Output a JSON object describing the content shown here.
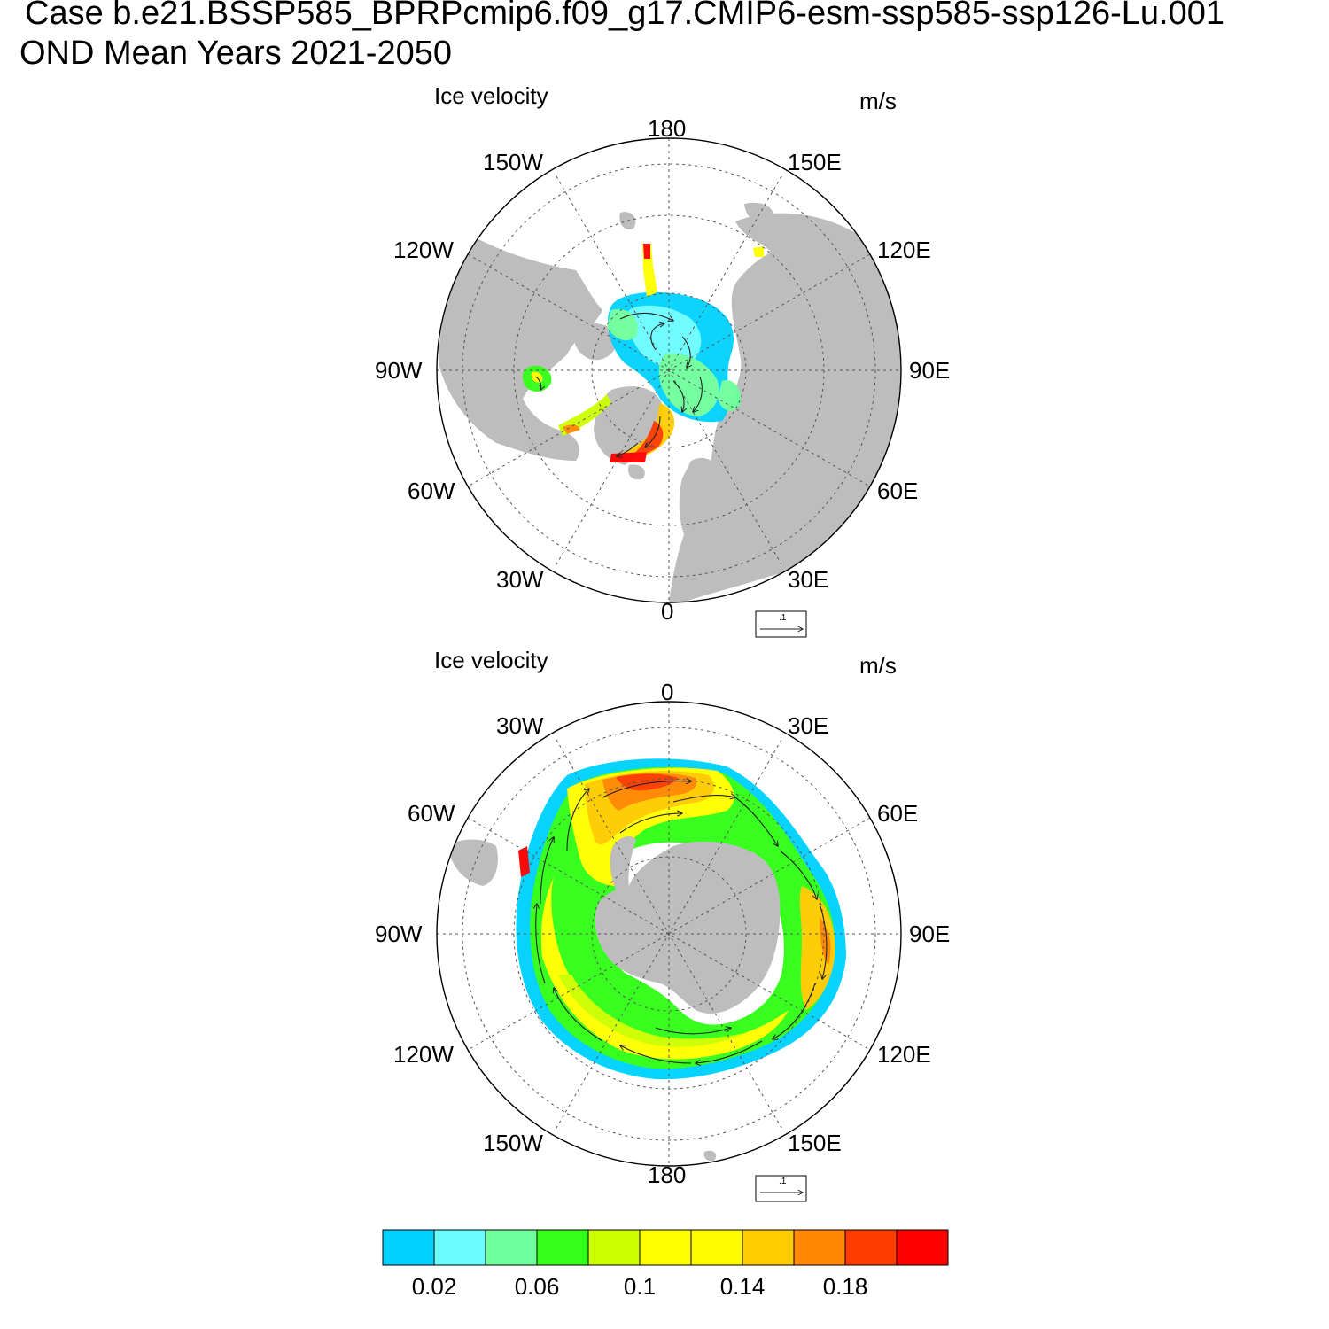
{
  "header": {
    "case_line": "Case b.e21.BSSP585_BPRPcmip6.f09_g17.CMIP6-esm-ssp585-ssp126-Lu.001",
    "period_line": "OND Mean   Years 2021-2050"
  },
  "panels": [
    {
      "id": "north",
      "title": "Ice velocity",
      "units": "m/s",
      "lon_labels": {
        "top": "180",
        "top_left": "150W",
        "top_right": "150E",
        "upper_left": "120W",
        "upper_right": "120E",
        "left": "90W",
        "right": "90E",
        "lower_left": "60W",
        "lower_right": "60E",
        "bottom_left": "30W",
        "bottom_right": "30E",
        "bottom": "0"
      },
      "reference_vector_label": ".1"
    },
    {
      "id": "south",
      "title": "Ice velocity",
      "units": "m/s",
      "lon_labels": {
        "top": "0",
        "top_left": "30W",
        "top_right": "30E",
        "upper_left": "60W",
        "upper_right": "60E",
        "left": "90W",
        "right": "90E",
        "lower_left": "120W",
        "lower_right": "120E",
        "bottom_left": "150W",
        "bottom_right": "150E",
        "bottom": "180"
      },
      "reference_vector_label": ".1"
    }
  ],
  "colorbar": {
    "colors": [
      "#00d2ff",
      "#6afcff",
      "#6fff9c",
      "#33ff19",
      "#ccff00",
      "#ffff00",
      "#fffc00",
      "#ffcc00",
      "#ff8800",
      "#ff3b00",
      "#ff0000"
    ],
    "tick_labels": [
      "0.02",
      "0.06",
      "0.1",
      "0.14",
      "0.18"
    ]
  }
}
